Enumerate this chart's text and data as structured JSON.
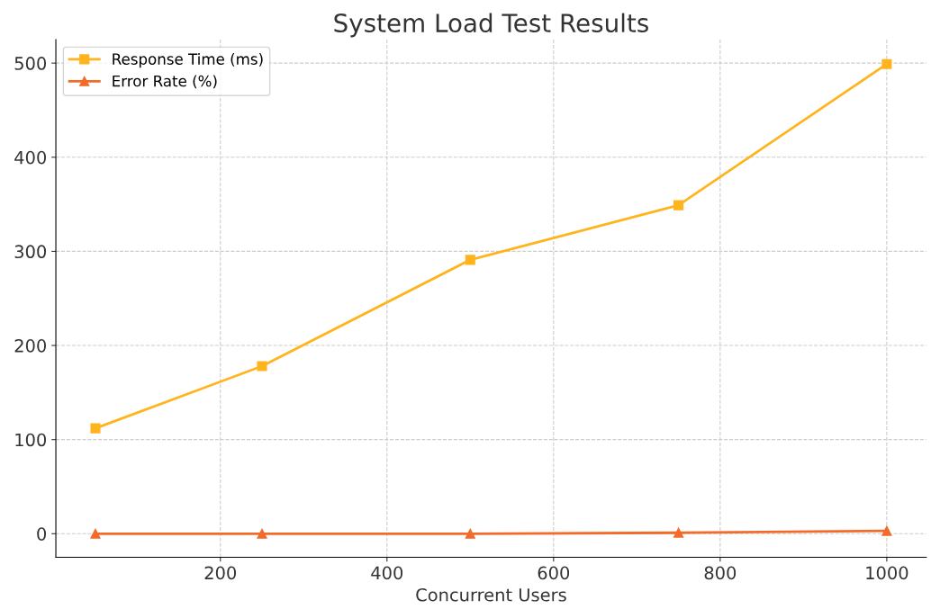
{
  "chart_data": {
    "type": "line",
    "title": "System Load Test Results",
    "xlabel": "Concurrent Users",
    "x": [
      50,
      250,
      500,
      750,
      1000
    ],
    "series": [
      {
        "name": "Response Time (ms)",
        "color": "#ffb41e",
        "marker": "square",
        "values": [
          112,
          178,
          291,
          349,
          499
        ]
      },
      {
        "name": "Error Rate (%)",
        "color": "#f26b2a",
        "marker": "triangle",
        "values": [
          0,
          0,
          0,
          1,
          3
        ]
      }
    ],
    "xlim": [
      2.5,
      1047.5
    ],
    "xticks": [
      200,
      400,
      600,
      800,
      1000
    ],
    "ylim": [
      -25,
      525
    ],
    "yticks": [
      0,
      100,
      200,
      300,
      400,
      500
    ],
    "grid": true,
    "legend": "top left",
    "line_style": "solid"
  }
}
